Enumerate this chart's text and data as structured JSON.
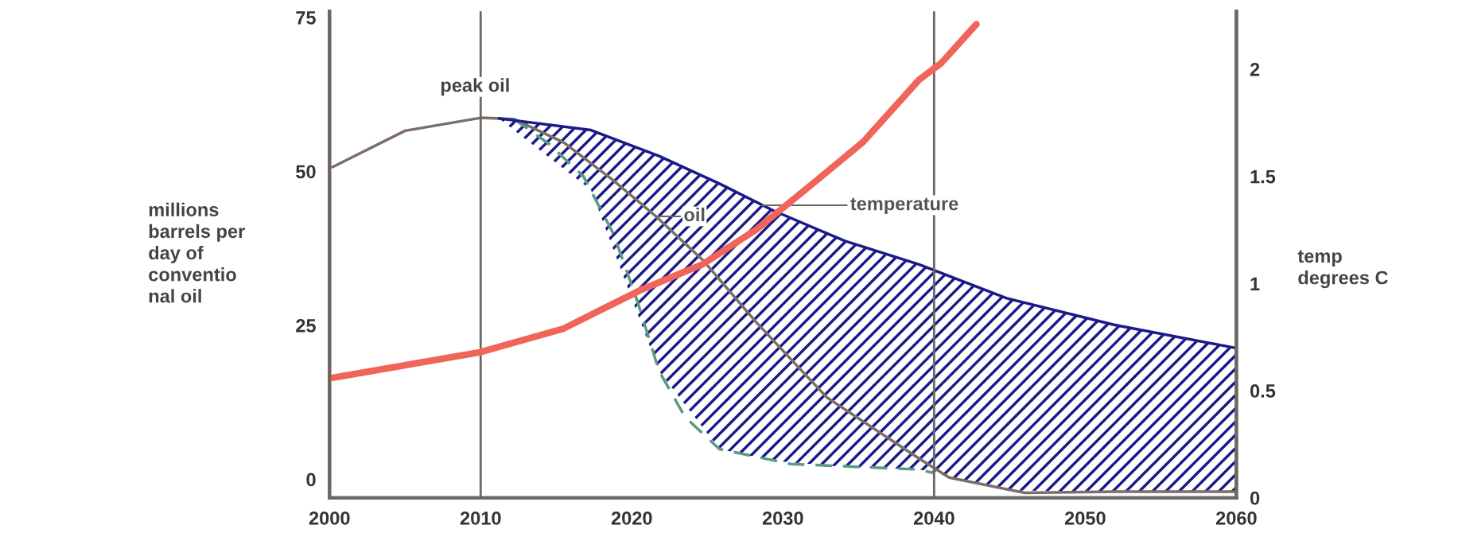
{
  "chart_data": {
    "type": "line",
    "ylabel": "millions\nbarrels per\nday of\nconventio\nnal oil",
    "y2label": "temp\ndegrees C",
    "xlim": [
      2000,
      2060
    ],
    "xticks": [
      2000,
      2010,
      2020,
      2030,
      2040,
      2050,
      2060
    ],
    "ylim": [
      -3,
      76
    ],
    "yticks": [
      0,
      25,
      50,
      75
    ],
    "y2lim": [
      0,
      2.27
    ],
    "y2ticks": [
      0,
      0.5,
      1,
      1.5,
      2
    ],
    "grid": false,
    "legend": false,
    "series": [
      {
        "color": "#7a6e66",
        "line_style": "solid",
        "x": [
          2000.2,
          2005,
          2010,
          2012.2,
          2015.5,
          2018.8,
          2021.6,
          2024.7,
          2028.2,
          2032.9,
          2039,
          2041,
          2046,
          2051.9,
          2060
        ],
        "values": [
          50.7,
          56.6,
          58.7,
          58.5,
          54.7,
          48.5,
          42.7,
          35.6,
          25.6,
          13.3,
          3.4,
          0.3,
          -2.2,
          -2,
          -2
        ]
      },
      {
        "color": "#5a9a80",
        "line_style": "dashed",
        "x": [
          2012.2,
          2014.5,
          2016.8,
          2018.8,
          2020.4,
          2021.8,
          2023.5,
          2025.8,
          2030.5,
          2039,
          2040
        ],
        "values": [
          58.5,
          54.5,
          49.2,
          39.8,
          28.7,
          17.6,
          10.2,
          4.9,
          2.5,
          1.6,
          1
        ]
      },
      {
        "color": "#1a1a8a",
        "line_style": "solid",
        "x": [
          2011.2,
          2017.3,
          2021.8,
          2025.8,
          2029.4,
          2034.1,
          2039,
          2044.8,
          2051.9,
          2060
        ],
        "values": [
          58.6,
          56.7,
          52.5,
          48,
          43.6,
          38.7,
          34.9,
          29.4,
          25.1,
          21.3
        ],
        "lower": [
          58.6,
          47,
          17.6,
          4.9,
          3,
          2,
          1.6,
          -1.8,
          -2,
          -2
        ],
        "upper": [
          58.6,
          56.7,
          52.5,
          48,
          43.6,
          38.7,
          34.9,
          29.4,
          25.1,
          21.3
        ]
      },
      {
        "color": "#f0645a",
        "line_style": "solid",
        "axis": "y2",
        "x": [
          2000.2,
          2010,
          2015.5,
          2020.6,
          2024.7,
          2028.2,
          2031.7,
          2035.3,
          2039,
          2040.5,
          2042.8
        ],
        "values": [
          0.56,
          0.68,
          0.79,
          0.97,
          1.09,
          1.25,
          1.45,
          1.66,
          1.95,
          2.03,
          2.21
        ]
      }
    ],
    "ref_lines": [
      {
        "axis": "x",
        "value": 2010,
        "color": "#6e6660"
      },
      {
        "axis": "x",
        "value": 2040,
        "color": "#6e6660"
      }
    ],
    "annotations": [
      {
        "text": "peak oil",
        "x": 2010,
        "y": 58.7
      },
      {
        "text": "oil",
        "x": 2021.6,
        "y": 42.7
      },
      {
        "text": "temperature",
        "x": 2028.6,
        "y": 44.5
      }
    ]
  }
}
